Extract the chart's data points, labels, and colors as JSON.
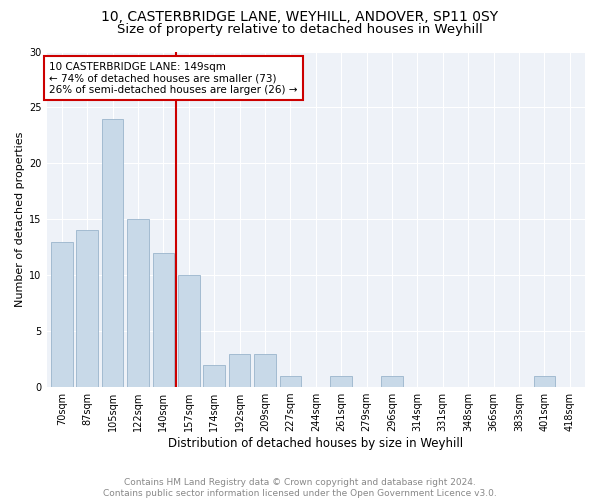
{
  "title1": "10, CASTERBRIDGE LANE, WEYHILL, ANDOVER, SP11 0SY",
  "title2": "Size of property relative to detached houses in Weyhill",
  "xlabel": "Distribution of detached houses by size in Weyhill",
  "ylabel": "Number of detached properties",
  "bar_labels": [
    "70sqm",
    "87sqm",
    "105sqm",
    "122sqm",
    "140sqm",
    "157sqm",
    "174sqm",
    "192sqm",
    "209sqm",
    "227sqm",
    "244sqm",
    "261sqm",
    "279sqm",
    "296sqm",
    "314sqm",
    "331sqm",
    "348sqm",
    "366sqm",
    "383sqm",
    "401sqm",
    "418sqm"
  ],
  "bar_values": [
    13,
    14,
    24,
    15,
    12,
    10,
    2,
    3,
    3,
    1,
    0,
    1,
    0,
    1,
    0,
    0,
    0,
    0,
    0,
    1,
    0
  ],
  "bar_color": "#c8d9e8",
  "bar_edge_color": "#9ab5cc",
  "vline_color": "#cc0000",
  "annotation_text": "10 CASTERBRIDGE LANE: 149sqm\n← 74% of detached houses are smaller (73)\n26% of semi-detached houses are larger (26) →",
  "annotation_box_color": "#ffffff",
  "annotation_box_edge": "#cc0000",
  "ylim": [
    0,
    30
  ],
  "yticks": [
    0,
    5,
    10,
    15,
    20,
    25,
    30
  ],
  "background_color": "#eef2f8",
  "grid_color": "#ffffff",
  "fig_bg_color": "#ffffff",
  "footer": "Contains HM Land Registry data © Crown copyright and database right 2024.\nContains public sector information licensed under the Open Government Licence v3.0.",
  "footer_color": "#888888",
  "title1_fontsize": 10,
  "title2_fontsize": 9.5,
  "xlabel_fontsize": 8.5,
  "ylabel_fontsize": 8,
  "tick_fontsize": 7,
  "annot_fontsize": 7.5,
  "footer_fontsize": 6.5
}
